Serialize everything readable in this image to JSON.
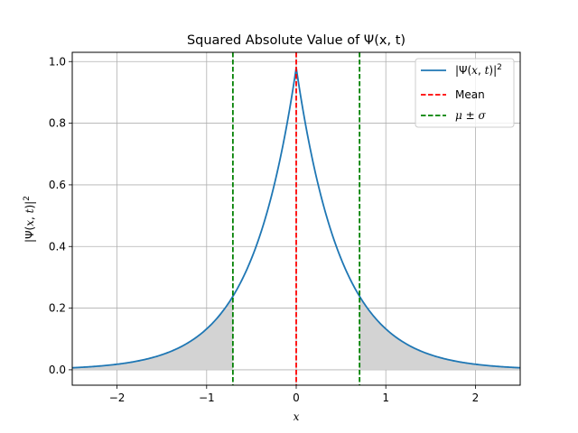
{
  "chart_data": {
    "type": "line",
    "title": "Squared Absolute Value of Ψ(x, t)",
    "xlabel": "x",
    "ylabel": "|Ψ(x, t)|²",
    "xlim": [
      -2.5,
      2.5
    ],
    "ylim": [
      -0.05,
      1.03
    ],
    "x_ticks": [
      -2,
      -1,
      0,
      1,
      2
    ],
    "y_ticks": [
      0.0,
      0.2,
      0.4,
      0.6,
      0.8,
      1.0
    ],
    "x_tick_labels": [
      "−2",
      "−1",
      "0",
      "1",
      "2"
    ],
    "y_tick_labels": [
      "0.0",
      "0.2",
      "0.4",
      "0.6",
      "0.8",
      "1.0"
    ],
    "grid": true,
    "legend_position": "top-right",
    "series": [
      {
        "name": "|Ψ(x, t)|²",
        "color": "#1f77b4",
        "x": [
          -2.5,
          -2.25,
          -2.0,
          -1.75,
          -1.5,
          -1.25,
          -1.0,
          -0.75,
          -0.707,
          -0.5,
          -0.25,
          0.0,
          0.25,
          0.5,
          0.707,
          0.75,
          1.0,
          1.25,
          1.5,
          1.75,
          2.0,
          2.25,
          2.5
        ],
        "y": [
          0.007,
          0.011,
          0.018,
          0.03,
          0.05,
          0.082,
          0.135,
          0.223,
          0.243,
          0.368,
          0.607,
          0.98,
          0.607,
          0.368,
          0.243,
          0.223,
          0.135,
          0.082,
          0.05,
          0.03,
          0.018,
          0.011,
          0.007
        ]
      }
    ],
    "vertical_lines": [
      {
        "name": "Mean",
        "x": 0.0,
        "color": "#ff0000",
        "style": "dashed"
      },
      {
        "name": "μ ± σ",
        "x": -0.707,
        "color": "#008000",
        "style": "dashed"
      },
      {
        "name": "μ ± σ",
        "x": 0.707,
        "color": "#008000",
        "style": "dashed"
      }
    ],
    "shaded_regions": [
      {
        "x_from": -2.5,
        "x_to": -0.707,
        "color": "#d3d3d3"
      },
      {
        "x_from": 0.707,
        "x_to": 2.5,
        "color": "#d3d3d3"
      }
    ],
    "legend": [
      {
        "label": "|Ψ(x, t)|²",
        "color": "#1f77b4",
        "style": "solid"
      },
      {
        "label": "Mean",
        "color": "#ff0000",
        "style": "dashed"
      },
      {
        "label": "μ ± σ",
        "color": "#008000",
        "style": "dashed"
      }
    ]
  }
}
